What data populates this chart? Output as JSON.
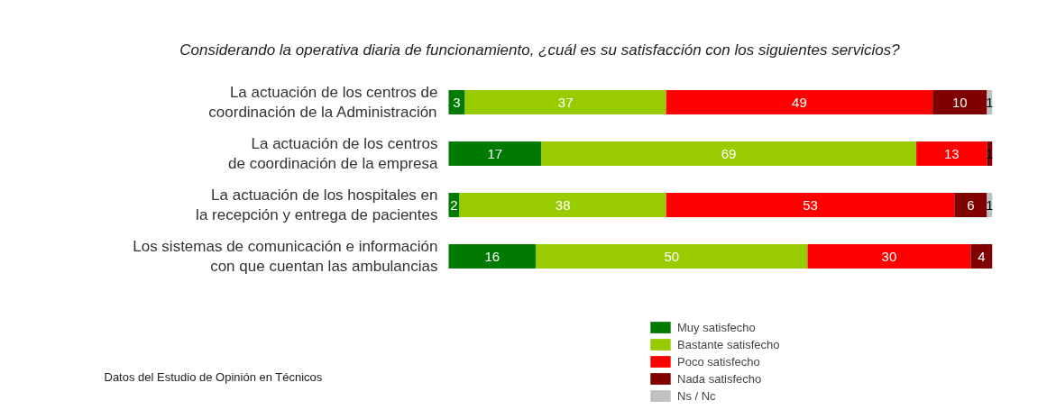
{
  "chart_data": {
    "type": "bar",
    "orientation": "horizontal",
    "stacked": true,
    "data_labels": true,
    "legend": "bottom",
    "grid": false,
    "title": "Considerando la operativa diaria de funcionamiento, ¿cuál es su satisfacción con los siguientes servicios?",
    "categories": [
      "La actuación de los centros de coordinación de la Administración",
      "La actuación de los centros de coordinación de la empresa",
      "La actuación de los hospitales en la recepción y entrega de pacientes",
      "Los sistemas de comunicación e información con que cuentan las ambulancias"
    ],
    "series": [
      {
        "name": "Muy satisfecho",
        "color": "#007a00",
        "values": [
          3,
          17,
          2,
          16
        ]
      },
      {
        "name": "Bastante satisfecho",
        "color": "#99cc00",
        "values": [
          37,
          69,
          38,
          50
        ]
      },
      {
        "name": "Poco satisfecho",
        "color": "#ff0000",
        "values": [
          49,
          13,
          53,
          30
        ]
      },
      {
        "name": "Nada satisfecho",
        "color": "#800000",
        "values": [
          10,
          1,
          6,
          4
        ]
      },
      {
        "name": "Ns / Nc",
        "color": "#c0c0c0",
        "values": [
          1,
          null,
          1,
          null
        ]
      }
    ],
    "annotations": [
      "Datos del Estudio de Opinión  en Técnicos"
    ]
  }
}
